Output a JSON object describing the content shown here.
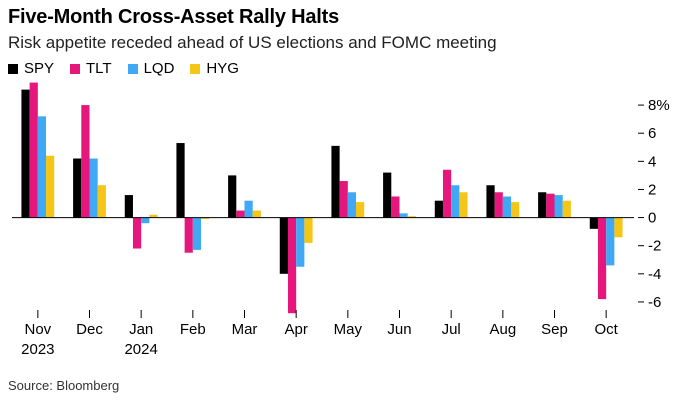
{
  "title": "Five-Month Cross-Asset Rally Halts",
  "subtitle": "Risk appetite receded ahead of US elections and FOMC meeting",
  "source": "Source: Bloomberg",
  "colors": {
    "SPY": "#000000",
    "TLT": "#e5177d",
    "LQD": "#3fa9f5",
    "HYG": "#f5c518"
  },
  "chart_data": {
    "type": "bar",
    "categories": [
      "Nov",
      "Dec",
      "Jan",
      "Feb",
      "Mar",
      "Apr",
      "May",
      "Jun",
      "Jul",
      "Aug",
      "Sep",
      "Oct"
    ],
    "category_sublabels": [
      "2023",
      "",
      "2024",
      "",
      "",
      "",
      "",
      "",
      "",
      "",
      "",
      ""
    ],
    "series": [
      {
        "name": "SPY",
        "values": [
          9.1,
          4.2,
          1.6,
          5.3,
          3.0,
          -4.0,
          5.1,
          3.2,
          1.2,
          2.3,
          1.8,
          -0.8
        ]
      },
      {
        "name": "TLT",
        "values": [
          9.6,
          8.0,
          -2.2,
          -2.5,
          0.5,
          -6.8,
          2.6,
          1.5,
          3.4,
          1.8,
          1.7,
          -5.8
        ]
      },
      {
        "name": "LQD",
        "values": [
          7.2,
          4.2,
          -0.4,
          -2.3,
          1.2,
          -3.5,
          1.8,
          0.3,
          2.3,
          1.5,
          1.6,
          -3.4
        ]
      },
      {
        "name": "HYG",
        "values": [
          4.4,
          2.3,
          0.2,
          -0.1,
          0.5,
          -1.8,
          1.1,
          0.1,
          1.8,
          1.1,
          1.2,
          -1.4
        ]
      }
    ],
    "yticks": [
      8,
      6,
      4,
      2,
      0,
      -2,
      -4,
      -6
    ],
    "ytick_labels": [
      "8%",
      "6",
      "4",
      "2",
      "0",
      "-2",
      "-4",
      "-6"
    ],
    "ylim": [
      -7,
      9.5
    ],
    "axis_side": "right",
    "grid": false,
    "legend_position": "top-left"
  }
}
